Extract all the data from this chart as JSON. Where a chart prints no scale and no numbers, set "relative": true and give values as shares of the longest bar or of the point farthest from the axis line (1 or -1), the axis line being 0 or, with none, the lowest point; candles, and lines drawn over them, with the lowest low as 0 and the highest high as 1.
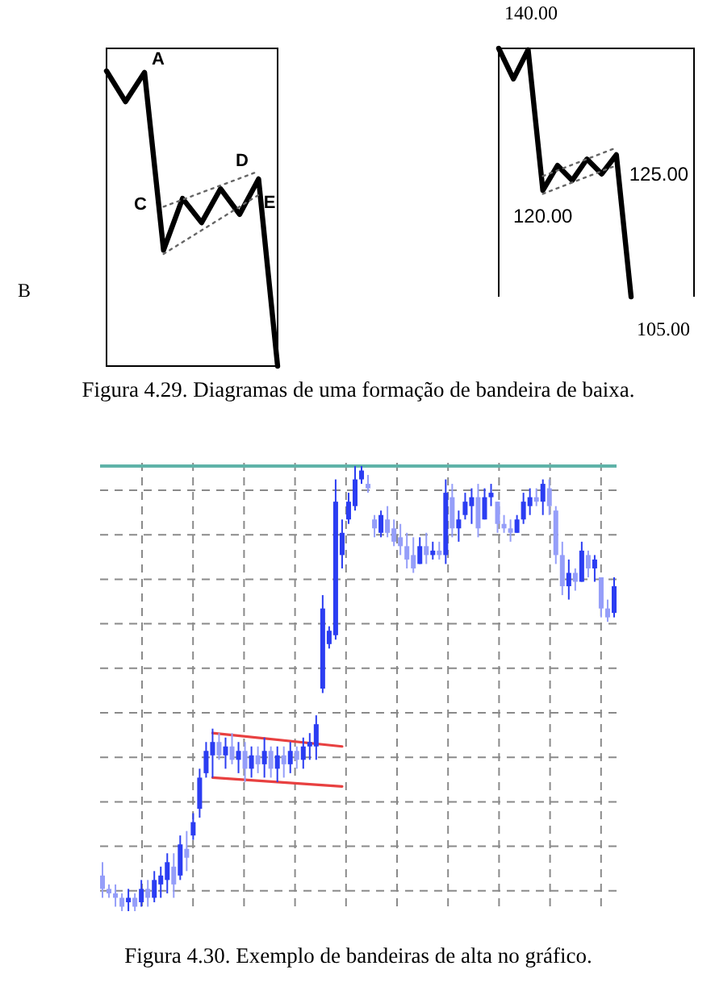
{
  "chart_data": [
    {
      "type": "line",
      "title": "Figura 4.29. Diagramas de uma formação de bandeira de baixa.",
      "relative": true,
      "categories": [
        null,
        null,
        null,
        null,
        null,
        null,
        null,
        null,
        null,
        null
      ],
      "series": [
        {
          "color": "#000000",
          "line_style": "solid",
          "values": [
            1,
            0.896,
            0.995,
            0.393,
            0.568,
            0.486,
            0.601,
            0.514,
            0.634,
            0
          ]
        },
        {
          "color": "#666666",
          "line_style": "dotted",
          "values": [
            null,
            null,
            null,
            0.54,
            null,
            null,
            null,
            null,
            0.66,
            null
          ]
        },
        {
          "color": "#666666",
          "line_style": "dotted",
          "values": [
            null,
            null,
            null,
            0.38,
            null,
            null,
            null,
            null,
            0.58,
            null
          ]
        }
      ],
      "annotations": [
        "A",
        "B",
        "C",
        "D",
        "E"
      ]
    },
    {
      "type": "line",
      "ylim": [
        105,
        140
      ],
      "categories": [
        null,
        null,
        null,
        null,
        null,
        null,
        null,
        null,
        null,
        null
      ],
      "series": [
        {
          "color": "#000000",
          "line_style": "solid",
          "values": [
            140,
            135.7,
            139.8,
            120,
            123.5,
            121.4,
            124.4,
            122.3,
            125,
            105
          ],
          "value_labels": [
            "140.00",
            null,
            null,
            "120.00",
            null,
            null,
            null,
            null,
            "125.00",
            "105.00"
          ]
        },
        {
          "color": "#666666",
          "line_style": "dotted",
          "values": [
            null,
            null,
            null,
            122,
            null,
            null,
            null,
            null,
            126,
            null
          ]
        },
        {
          "color": "#666666",
          "line_style": "dotted",
          "values": [
            null,
            null,
            null,
            119.5,
            null,
            null,
            null,
            null,
            123.5,
            null
          ]
        }
      ]
    },
    {
      "type": "candlestick",
      "title": "Figura 4.30. Exemplo de bandeiras de alta no gráfico.",
      "relative": true,
      "grid": true,
      "colors": [
        "#959ef9",
        "#959ef9",
        "#959ef9",
        "#959ef9",
        "#2b3df2",
        "#959ef9",
        "#2b3df2",
        "#959ef9",
        "#2b3df2",
        "#2b3df2",
        "#2b3df2",
        "#959ef9",
        "#2b3df2",
        "#959ef9",
        "#2b3df2",
        "#2b3df2",
        "#2b3df2",
        "#2b3df2",
        "#959ef9",
        "#2b3df2",
        "#959ef9",
        "#2b3df2",
        "#959ef9",
        "#2b3df2",
        "#959ef9",
        "#2b3df2",
        "#959ef9",
        "#2b3df2",
        "#959ef9",
        "#2b3df2",
        "#959ef9",
        "#2b3df2",
        "#2b3df2",
        "#2b3df2",
        "#2b3df2",
        "#2b3df2",
        "#2b3df2",
        "#2b3df2",
        "#2b3df2",
        "#2b3df2",
        "#2b3df2",
        "#959ef9",
        "#959ef9",
        "#2b3df2",
        "#959ef9",
        "#959ef9",
        "#959ef9",
        "#959ef9",
        "#959ef9",
        "#2b3df2",
        "#959ef9",
        "#2b3df2",
        "#959ef9",
        "#2b3df2",
        "#959ef9",
        "#2b3df2",
        "#2b3df2",
        "#2b3df2",
        "#959ef9",
        "#2b3df2",
        "#2b3df2",
        "#959ef9",
        "#959ef9",
        "#959ef9",
        "#2b3df2",
        "#2b3df2",
        "#2b3df2",
        "#959ef9",
        "#2b3df2",
        "#959ef9",
        "#959ef9",
        "#959ef9",
        "#2b3df2",
        "#959ef9",
        "#2b3df2",
        "#959ef9",
        "#2b3df2",
        "#959ef9",
        "#959ef9",
        "#2b3df2"
      ],
      "categories": [
        null,
        null,
        null,
        null,
        null,
        null,
        null,
        null,
        null,
        null,
        null,
        null,
        null,
        null,
        null,
        null,
        null,
        null,
        null,
        null,
        null,
        null,
        null,
        null,
        null,
        null,
        null,
        null,
        null,
        null,
        null,
        null,
        null,
        null,
        null,
        null,
        null,
        null,
        null,
        null,
        null,
        null,
        null,
        null,
        null,
        null,
        null,
        null,
        null,
        null,
        null,
        null,
        null,
        null,
        null,
        null,
        null,
        null,
        null,
        null,
        null,
        null,
        null,
        null,
        null,
        null,
        null,
        null,
        null,
        null,
        null,
        null,
        null,
        null,
        null,
        null,
        null,
        null,
        null,
        null
      ],
      "ohlc": [
        [
          0.08,
          0.11,
          0.03,
          0.05
        ],
        [
          0.05,
          0.06,
          0.03,
          0.04
        ],
        [
          0.04,
          0.06,
          0.01,
          0.03
        ],
        [
          0.03,
          0.04,
          0,
          0.01
        ],
        [
          0.02,
          0.05,
          0,
          0.03
        ],
        [
          0.03,
          0.04,
          0,
          0.01
        ],
        [
          0.02,
          0.07,
          0.01,
          0.05
        ],
        [
          0.05,
          0.07,
          0.01,
          0.03
        ],
        [
          0.03,
          0.09,
          0.02,
          0.07
        ],
        [
          0.06,
          0.1,
          0.03,
          0.08
        ],
        [
          0.07,
          0.13,
          0.04,
          0.11
        ],
        [
          0.1,
          0.13,
          0.03,
          0.06
        ],
        [
          0.08,
          0.17,
          0.07,
          0.15
        ],
        [
          0.14,
          0.18,
          0.09,
          0.12
        ],
        [
          0.17,
          0.22,
          0.16,
          0.2
        ],
        [
          0.23,
          0.32,
          0.21,
          0.3
        ],
        [
          0.31,
          0.38,
          0.3,
          0.36
        ],
        [
          0.35,
          0.41,
          0.3,
          0.38
        ],
        [
          0.38,
          0.4,
          0.34,
          0.35
        ],
        [
          0.35,
          0.39,
          0.32,
          0.37
        ],
        [
          0.37,
          0.4,
          0.33,
          0.34
        ],
        [
          0.34,
          0.38,
          0.31,
          0.36
        ],
        [
          0.36,
          0.38,
          0.29,
          0.32
        ],
        [
          0.32,
          0.37,
          0.3,
          0.35
        ],
        [
          0.35,
          0.37,
          0.31,
          0.33
        ],
        [
          0.33,
          0.39,
          0.3,
          0.36
        ],
        [
          0.36,
          0.37,
          0.3,
          0.32
        ],
        [
          0.32,
          0.37,
          0.29,
          0.35
        ],
        [
          0.35,
          0.37,
          0.3,
          0.33
        ],
        [
          0.33,
          0.38,
          0.31,
          0.36
        ],
        [
          0.36,
          0.37,
          0.32,
          0.34
        ],
        [
          0.34,
          0.39,
          0.32,
          0.37
        ],
        [
          0.37,
          0.4,
          0.34,
          0.38
        ],
        [
          0.37,
          0.44,
          0.34,
          0.42
        ],
        [
          0.5,
          0.71,
          0.49,
          0.68
        ],
        [
          0.6,
          0.64,
          0.59,
          0.63
        ],
        [
          0.62,
          0.97,
          0.61,
          0.92
        ],
        [
          0.8,
          0.88,
          0.77,
          0.85
        ],
        [
          0.88,
          0.94,
          0.87,
          0.92
        ],
        [
          0.91,
          1.0,
          0.9,
          0.97
        ],
        [
          0.97,
          1.0,
          0.96,
          0.99
        ],
        [
          0.96,
          0.98,
          0.94,
          0.95
        ],
        [
          0.88,
          0.89,
          0.84,
          0.86
        ],
        [
          0.85,
          0.9,
          0.84,
          0.89
        ],
        [
          0.88,
          0.91,
          0.84,
          0.85
        ],
        [
          0.86,
          0.88,
          0.82,
          0.83
        ],
        [
          0.84,
          0.87,
          0.8,
          0.82
        ],
        [
          0.82,
          0.85,
          0.77,
          0.79
        ],
        [
          0.8,
          0.84,
          0.76,
          0.77
        ],
        [
          0.78,
          0.84,
          0.78,
          0.82
        ],
        [
          0.82,
          0.85,
          0.78,
          0.8
        ],
        [
          0.8,
          0.83,
          0.79,
          0.81
        ],
        [
          0.81,
          0.83,
          0.79,
          0.8
        ],
        [
          0.8,
          0.97,
          0.78,
          0.94
        ],
        [
          0.93,
          0.96,
          0.84,
          0.86
        ],
        [
          0.86,
          0.9,
          0.83,
          0.88
        ],
        [
          0.89,
          0.94,
          0.88,
          0.92
        ],
        [
          0.91,
          0.95,
          0.87,
          0.93
        ],
        [
          0.93,
          0.96,
          0.84,
          0.86
        ],
        [
          0.88,
          0.95,
          0.88,
          0.93
        ],
        [
          0.93,
          0.96,
          0.91,
          0.94
        ],
        [
          0.92,
          0.92,
          0.85,
          0.87
        ],
        [
          0.87,
          0.89,
          0.85,
          0.86
        ],
        [
          0.86,
          0.88,
          0.83,
          0.85
        ],
        [
          0.85,
          0.89,
          0.85,
          0.88
        ],
        [
          0.88,
          0.94,
          0.87,
          0.92
        ],
        [
          0.91,
          0.95,
          0.89,
          0.93
        ],
        [
          0.93,
          0.95,
          0.91,
          0.92
        ],
        [
          0.92,
          0.97,
          0.89,
          0.96
        ],
        [
          0.95,
          0.97,
          0.89,
          0.91
        ],
        [
          0.9,
          0.91,
          0.78,
          0.8
        ],
        [
          0.8,
          0.83,
          0.71,
          0.73
        ],
        [
          0.73,
          0.79,
          0.7,
          0.76
        ],
        [
          0.76,
          0.77,
          0.72,
          0.74
        ],
        [
          0.74,
          0.83,
          0.74,
          0.81
        ],
        [
          0.8,
          0.81,
          0.75,
          0.77
        ],
        [
          0.77,
          0.8,
          0.74,
          0.79
        ],
        [
          0.75,
          0.75,
          0.66,
          0.68
        ],
        [
          0.68,
          0.7,
          0.65,
          0.66
        ],
        [
          0.67,
          0.75,
          0.66,
          0.73
        ]
      ],
      "series": [
        {
          "type": "line",
          "color": "#e84040",
          "values": [
            null,
            null,
            null,
            null,
            null,
            null,
            null,
            null,
            null,
            null,
            null,
            null,
            null,
            null,
            null,
            null,
            null,
            0.4,
            null,
            null,
            null,
            null,
            null,
            null,
            null,
            null,
            null,
            null,
            null,
            null,
            null,
            null,
            null,
            null,
            null,
            null,
            null,
            0.37,
            null,
            null,
            null,
            null,
            null,
            null,
            null,
            null,
            null,
            null,
            null,
            null,
            null,
            null,
            null,
            null,
            null,
            null,
            null,
            null,
            null,
            null,
            null,
            null,
            null,
            null,
            null,
            null,
            null,
            null,
            null,
            null,
            null,
            null,
            null,
            null,
            null,
            null,
            null,
            null,
            null,
            null
          ]
        },
        {
          "type": "line",
          "color": "#e84040",
          "values": [
            null,
            null,
            null,
            null,
            null,
            null,
            null,
            null,
            null,
            null,
            null,
            null,
            null,
            null,
            null,
            null,
            null,
            0.3,
            null,
            null,
            null,
            null,
            null,
            null,
            null,
            null,
            null,
            null,
            null,
            null,
            null,
            null,
            null,
            null,
            null,
            null,
            null,
            0.28,
            null,
            null,
            null,
            null,
            null,
            null,
            null,
            null,
            null,
            null,
            null,
            null,
            null,
            null,
            null,
            null,
            null,
            null,
            null,
            null,
            null,
            null,
            null,
            null,
            null,
            null,
            null,
            null,
            null,
            null,
            null,
            null,
            null,
            null,
            null,
            null,
            null,
            null,
            null,
            null,
            null,
            null
          ]
        }
      ],
      "ref_lines": [
        {
          "axis": "y",
          "value": 1,
          "color": "#5fb3a8"
        }
      ]
    }
  ]
}
